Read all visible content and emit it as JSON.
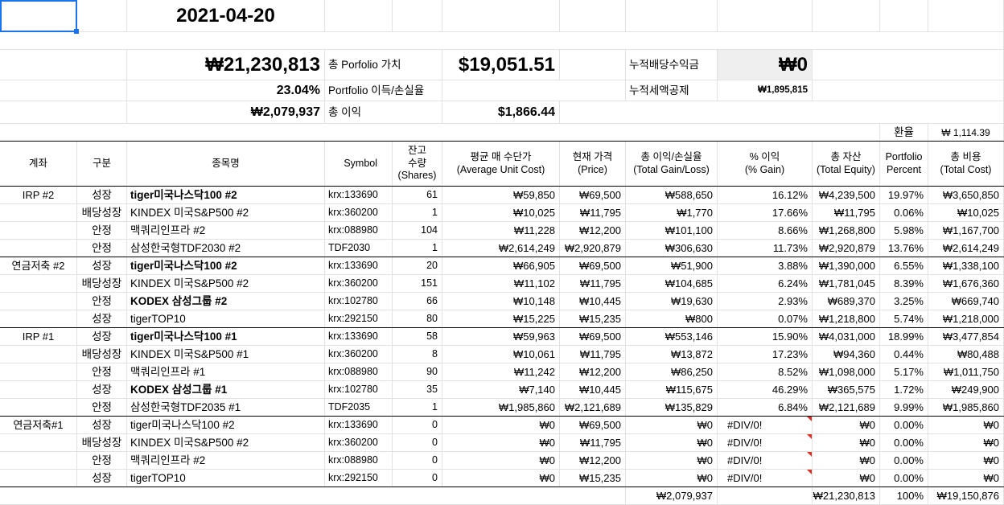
{
  "summary": {
    "date": "2021-04-20",
    "total_krw": "₩21,230,813",
    "total_label": "총 Porfolio 가치",
    "total_usd": "$19,051.51",
    "div_label": "누적배당수익금",
    "div_value": "₩0",
    "gain_pct": "23.04%",
    "gain_pct_label": "Portfolio 이득/손실율",
    "tax_label": "누적세액공제",
    "tax_value": "₩1,895,815",
    "gain_krw": "₩2,079,937",
    "gain_label": "총 이익",
    "gain_usd": "$1,866.44",
    "fx_label": "환율",
    "fx_value": "₩  1,114.39"
  },
  "headers": {
    "account": [
      "계좌"
    ],
    "type": [
      "구분"
    ],
    "name": [
      "종목명"
    ],
    "symbol": [
      "Symbol"
    ],
    "shares": [
      "잔고",
      "수량",
      "(Shares)"
    ],
    "avg": [
      "평균 매 수단가",
      "(Average Unit Cost)"
    ],
    "price": [
      "현재 가격",
      "(Price)"
    ],
    "gain": [
      "총 이익/손실율",
      "(Total Gain/Loss)"
    ],
    "pct": [
      "% 이익",
      "(% Gain)"
    ],
    "equity": [
      "총 자산",
      "(Total Equity)"
    ],
    "portfolio": [
      "Portfolio",
      "Percent"
    ],
    "cost": [
      "총 비용",
      "(Total Cost)"
    ]
  },
  "rows": [
    {
      "account": "IRP #2",
      "type": "성장",
      "name": "tiger미국나스닥100 #2",
      "bold": true,
      "symbol": "krx:133690",
      "shares": "61",
      "avg": "₩59,850",
      "price": "₩69,500",
      "gain": "₩588,650",
      "pct": "16.12%",
      "equity": "₩4,239,500",
      "portfolio": "19.97%",
      "cost": "₩3,650,850"
    },
    {
      "account": "",
      "type": "배당성장",
      "name": "KINDEX 미국S&P500 #2",
      "bold": false,
      "symbol": "krx:360200",
      "shares": "1",
      "avg": "₩10,025",
      "price": "₩11,795",
      "gain": "₩1,770",
      "pct": "17.66%",
      "equity": "₩11,795",
      "portfolio": "0.06%",
      "cost": "₩10,025"
    },
    {
      "account": "",
      "type": "안정",
      "name": "맥쿼리인프라 #2",
      "bold": false,
      "symbol": "krx:088980",
      "shares": "104",
      "avg": "₩11,228",
      "price": "₩12,200",
      "gain": "₩101,100",
      "pct": "8.66%",
      "equity": "₩1,268,800",
      "portfolio": "5.98%",
      "cost": "₩1,167,700"
    },
    {
      "account": "",
      "type": "안정",
      "name": "삼성한국형TDF2030 #2",
      "bold": false,
      "symbol": "TDF2030",
      "shares": "1",
      "avg": "₩2,614,249",
      "price": "₩2,920,879",
      "gain": "₩306,630",
      "pct": "11.73%",
      "equity": "₩2,920,879",
      "portfolio": "13.76%",
      "cost": "₩2,614,249"
    },
    {
      "account": "연금저축 #2",
      "type": "성장",
      "name": "tiger미국나스닥100 #2",
      "bold": true,
      "symbol": "krx:133690",
      "shares": "20",
      "avg": "₩66,905",
      "price": "₩69,500",
      "gain": "₩51,900",
      "pct": "3.88%",
      "equity": "₩1,390,000",
      "portfolio": "6.55%",
      "cost": "₩1,338,100"
    },
    {
      "account": "",
      "type": "배당성장",
      "name": "KINDEX 미국S&P500 #2",
      "bold": false,
      "symbol": "krx:360200",
      "shares": "151",
      "avg": "₩11,102",
      "price": "₩11,795",
      "gain": "₩104,685",
      "pct": "6.24%",
      "equity": "₩1,781,045",
      "portfolio": "8.39%",
      "cost": "₩1,676,360"
    },
    {
      "account": "",
      "type": "안정",
      "name": "KODEX 삼성그룹 #2",
      "bold": true,
      "symbol": "krx:102780",
      "shares": "66",
      "avg": "₩10,148",
      "price": "₩10,445",
      "gain": "₩19,630",
      "pct": "2.93%",
      "equity": "₩689,370",
      "portfolio": "3.25%",
      "cost": "₩669,740"
    },
    {
      "account": "",
      "type": "성장",
      "name": "tigerTOP10",
      "bold": false,
      "symbol": "krx:292150",
      "shares": "80",
      "avg": "₩15,225",
      "price": "₩15,235",
      "gain": "₩800",
      "pct": "0.07%",
      "equity": "₩1,218,800",
      "portfolio": "5.74%",
      "cost": "₩1,218,000"
    },
    {
      "account": "IRP #1",
      "type": "성장",
      "name": "tiger미국나스닥100 #1",
      "bold": true,
      "symbol": "krx:133690",
      "shares": "58",
      "avg": "₩59,963",
      "price": "₩69,500",
      "gain": "₩553,146",
      "pct": "15.90%",
      "equity": "₩4,031,000",
      "portfolio": "18.99%",
      "cost": "₩3,477,854"
    },
    {
      "account": "",
      "type": "배당성장",
      "name": "KINDEX 미국S&P500 #1",
      "bold": false,
      "symbol": "krx:360200",
      "shares": "8",
      "avg": "₩10,061",
      "price": "₩11,795",
      "gain": "₩13,872",
      "pct": "17.23%",
      "equity": "₩94,360",
      "portfolio": "0.44%",
      "cost": "₩80,488"
    },
    {
      "account": "",
      "type": "안정",
      "name": "맥쿼리인프라 #1",
      "bold": false,
      "symbol": "krx:088980",
      "shares": "90",
      "avg": "₩11,242",
      "price": "₩12,200",
      "gain": "₩86,250",
      "pct": "8.52%",
      "equity": "₩1,098,000",
      "portfolio": "5.17%",
      "cost": "₩1,011,750"
    },
    {
      "account": "",
      "type": "성장",
      "name": "KODEX 삼성그룹 #1",
      "bold": true,
      "symbol": "krx:102780",
      "shares": "35",
      "avg": "₩7,140",
      "price": "₩10,445",
      "gain": "₩115,675",
      "pct": "46.29%",
      "equity": "₩365,575",
      "portfolio": "1.72%",
      "cost": "₩249,900"
    },
    {
      "account": "",
      "type": "안정",
      "name": "삼성한국형TDF2035 #1",
      "bold": false,
      "symbol": "TDF2035",
      "shares": "1",
      "avg": "₩1,985,860",
      "price": "₩2,121,689",
      "gain": "₩135,829",
      "pct": "6.84%",
      "equity": "₩2,121,689",
      "portfolio": "9.99%",
      "cost": "₩1,985,860"
    },
    {
      "account": "연금저축#1",
      "type": "성장",
      "name": "tiger미국나스닥100 #2",
      "bold": false,
      "symbol": "krx:133690",
      "shares": "0",
      "avg": "₩0",
      "price": "₩69,500",
      "gain": "₩0",
      "pct": "#DIV/0!",
      "equity": "₩0",
      "portfolio": "0.00%",
      "cost": "₩0",
      "note": true
    },
    {
      "account": "",
      "type": "배당성장",
      "name": "KINDEX 미국S&P500 #2",
      "bold": false,
      "symbol": "krx:360200",
      "shares": "0",
      "avg": "₩0",
      "price": "₩11,795",
      "gain": "₩0",
      "pct": "#DIV/0!",
      "equity": "₩0",
      "portfolio": "0.00%",
      "cost": "₩0",
      "note": true
    },
    {
      "account": "",
      "type": "안정",
      "name": "맥쿼리인프라 #2",
      "bold": false,
      "symbol": "krx:088980",
      "shares": "0",
      "avg": "₩0",
      "price": "₩12,200",
      "gain": "₩0",
      "pct": "#DIV/0!",
      "equity": "₩0",
      "portfolio": "0.00%",
      "cost": "₩0",
      "note": true
    },
    {
      "account": "",
      "type": "성장",
      "name": "tigerTOP10",
      "bold": false,
      "symbol": "krx:292150",
      "shares": "0",
      "avg": "₩0",
      "price": "₩15,235",
      "gain": "₩0",
      "pct": "#DIV/0!",
      "equity": "₩0",
      "portfolio": "0.00%",
      "cost": "₩0",
      "note": true
    }
  ],
  "totals": {
    "gain": "₩2,079,937",
    "equity": "₩21,230,813",
    "portfolio": "100%",
    "cost": "₩19,150,876"
  }
}
